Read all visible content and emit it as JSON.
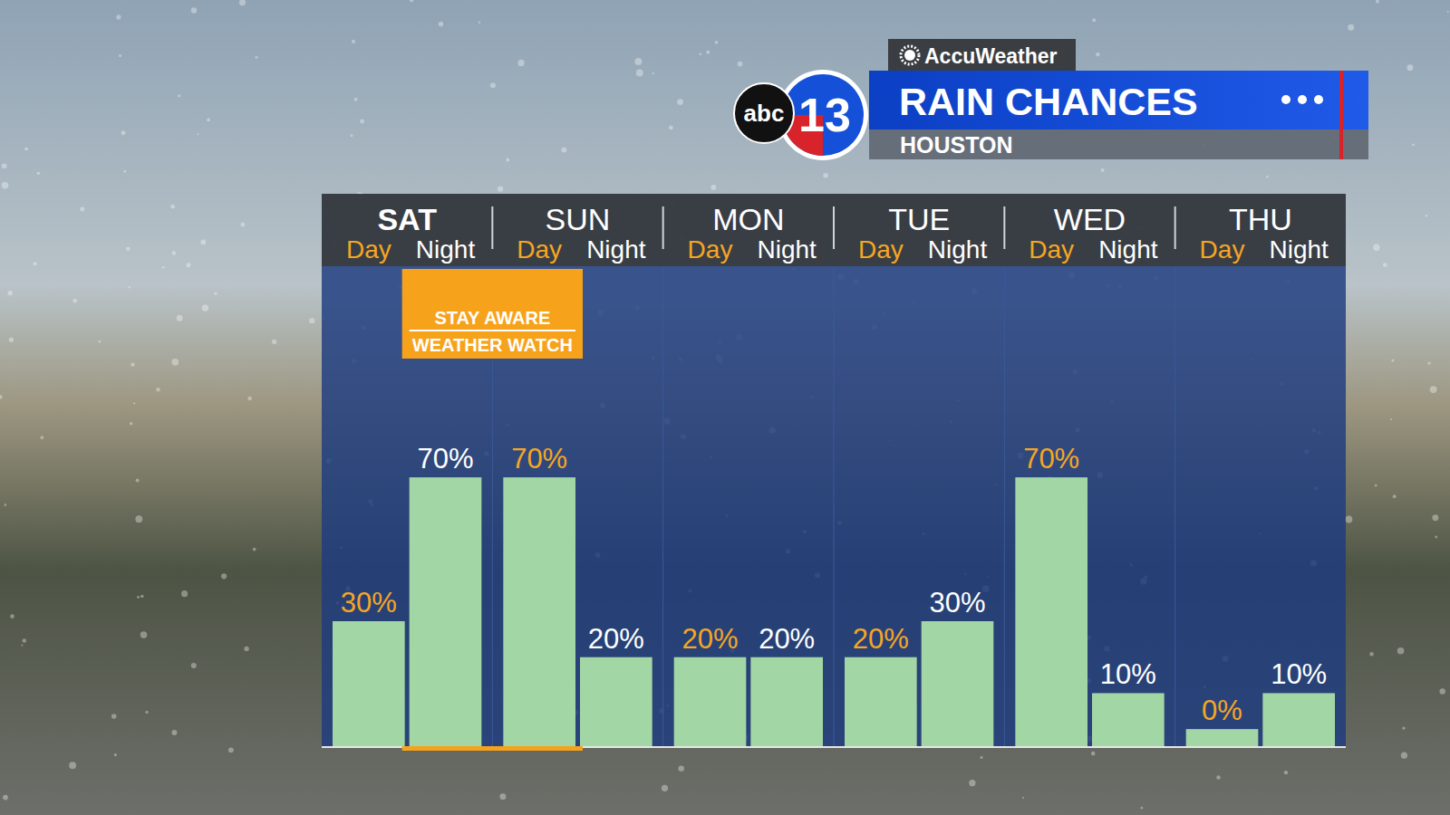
{
  "chart_data": {
    "type": "bar",
    "title": "RAIN CHANCES",
    "subtitle": "HOUSTON",
    "provider": "AccuWeather",
    "network": "abc",
    "channel": "13",
    "groups": [
      "SAT",
      "SUN",
      "MON",
      "TUE",
      "WED",
      "THU"
    ],
    "categories": [
      "Day",
      "Night",
      "Day",
      "Night",
      "Day",
      "Night",
      "Day",
      "Night",
      "Day",
      "Night",
      "Day",
      "Night"
    ],
    "values": [
      30,
      70,
      70,
      20,
      20,
      20,
      20,
      30,
      70,
      10,
      0,
      10
    ],
    "value_labels": [
      "30%",
      "70%",
      "70%",
      "20%",
      "20%",
      "20%",
      "20%",
      "30%",
      "70%",
      "10%",
      "0%",
      "10%"
    ],
    "color": "#a3d6a5",
    "ylim": [
      -5,
      100
    ],
    "tick_labels": false,
    "data_labels": true,
    "grid": false,
    "annotations": [
      {
        "text": [
          "STAY AWARE",
          "WEATHER WATCH"
        ],
        "span": [
          1,
          2
        ]
      }
    ]
  }
}
